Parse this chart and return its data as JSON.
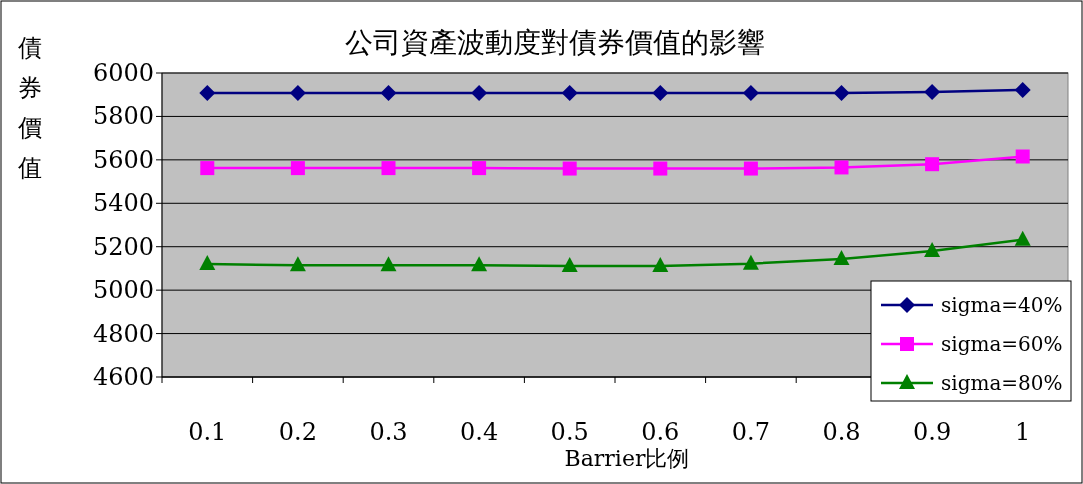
{
  "chart_data": {
    "type": "line",
    "title": "公司資產波動度對債券價值的影響",
    "xlabel": "Barrier比例",
    "ylabel": "債券價值",
    "categories": [
      "0.1",
      "0.2",
      "0.3",
      "0.4",
      "0.5",
      "0.6",
      "0.7",
      "0.8",
      "0.9",
      "1"
    ],
    "series": [
      {
        "name": "sigma=40%",
        "color": "#000080",
        "marker": "diamond",
        "values": [
          5908,
          5908,
          5908,
          5908,
          5908,
          5908,
          5908,
          5908,
          5912,
          5922
        ]
      },
      {
        "name": "sigma=60%",
        "color": "#ff00ff",
        "marker": "square",
        "values": [
          5562,
          5562,
          5562,
          5562,
          5560,
          5560,
          5560,
          5565,
          5580,
          5615
        ]
      },
      {
        "name": "sigma=80%",
        "color": "#008000",
        "marker": "triangle",
        "values": [
          5120,
          5115,
          5115,
          5115,
          5111,
          5111,
          5122,
          5143,
          5180,
          5232
        ]
      }
    ],
    "ylim": [
      4600,
      6000
    ],
    "yticks": [
      4600,
      4800,
      5000,
      5200,
      5400,
      5600,
      5800,
      6000
    ],
    "grid": "y",
    "legend": "bottom right"
  }
}
